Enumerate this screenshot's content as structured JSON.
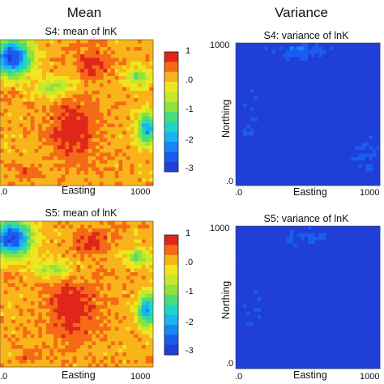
{
  "columns": {
    "left_title": "Mean",
    "right_title": "Variance"
  },
  "colorbar_ticks": [
    "1",
    ".0",
    "-1",
    "-2",
    "-3"
  ],
  "palette": [
    "#1f3fd6",
    "#1a5cf0",
    "#1a86f5",
    "#1ab4f0",
    "#1fd6c6",
    "#4bdc7a",
    "#8fe23c",
    "#c6e82a",
    "#f0e61f",
    "#f8b41a",
    "#f46a16",
    "#e0261a"
  ],
  "chart_data": [
    {
      "type": "heatmap",
      "title": "S4: mean of lnK",
      "xlabel": "Easting",
      "ylabel": "",
      "x_ticks": [
        ".0",
        "1000"
      ],
      "y_ticks": [],
      "colorbar": true,
      "clim": [
        -3,
        1
      ],
      "background": 0.2,
      "blobs": [
        {
          "x": 480,
          "y": 620,
          "rx": 150,
          "ry": 190,
          "value": 1.0
        },
        {
          "x": 600,
          "y": 160,
          "rx": 110,
          "ry": 90,
          "value": 0.9
        },
        {
          "x": 170,
          "y": 920,
          "rx": 60,
          "ry": 60,
          "value": 0.6
        },
        {
          "x": 60,
          "y": 380,
          "rx": 50,
          "ry": 70,
          "value": 0.4
        },
        {
          "x": 80,
          "y": 120,
          "rx": 120,
          "ry": 120,
          "value": -2.8
        },
        {
          "x": 960,
          "y": 610,
          "rx": 60,
          "ry": 110,
          "value": -2.0
        },
        {
          "x": 900,
          "y": 250,
          "rx": 80,
          "ry": 60,
          "value": -1.0
        },
        {
          "x": 350,
          "y": 330,
          "rx": 120,
          "ry": 60,
          "value": -0.8
        }
      ]
    },
    {
      "type": "heatmap",
      "title": "S4: variance of lnK",
      "xlabel": "Easting",
      "ylabel": "Northing",
      "x_ticks": [
        ".0",
        "1000"
      ],
      "y_ticks": [
        "1000",
        ".0"
      ],
      "colorbar": false,
      "clim": [
        -3,
        1
      ],
      "background": -3.0,
      "blobs": [
        {
          "x": 450,
          "y": 60,
          "rx": 200,
          "ry": 60,
          "value": -2.4
        },
        {
          "x": 900,
          "y": 800,
          "rx": 100,
          "ry": 150,
          "value": -2.6
        },
        {
          "x": 100,
          "y": 500,
          "rx": 80,
          "ry": 200,
          "value": -2.7
        }
      ]
    },
    {
      "type": "heatmap",
      "title": "S5: mean of lnK",
      "xlabel": "Easting",
      "ylabel": "",
      "x_ticks": [
        ".0",
        "1000"
      ],
      "y_ticks": [],
      "colorbar": true,
      "clim": [
        -3,
        1
      ],
      "background": 0.2,
      "blobs": [
        {
          "x": 470,
          "y": 600,
          "rx": 160,
          "ry": 200,
          "value": 1.0
        },
        {
          "x": 600,
          "y": 150,
          "rx": 110,
          "ry": 90,
          "value": 0.9
        },
        {
          "x": 170,
          "y": 920,
          "rx": 60,
          "ry": 60,
          "value": 0.6
        },
        {
          "x": 60,
          "y": 380,
          "rx": 50,
          "ry": 70,
          "value": 0.4
        },
        {
          "x": 80,
          "y": 120,
          "rx": 120,
          "ry": 120,
          "value": -2.8
        },
        {
          "x": 960,
          "y": 610,
          "rx": 60,
          "ry": 110,
          "value": -2.0
        },
        {
          "x": 900,
          "y": 250,
          "rx": 80,
          "ry": 60,
          "value": -1.0
        },
        {
          "x": 350,
          "y": 330,
          "rx": 120,
          "ry": 60,
          "value": -0.8
        }
      ]
    },
    {
      "type": "heatmap",
      "title": "S5: variance of lnK",
      "xlabel": "Easting",
      "ylabel": "Northing",
      "x_ticks": [
        ".0",
        "1000"
      ],
      "y_ticks": [
        "1000",
        ".0"
      ],
      "colorbar": false,
      "clim": [
        -3,
        1
      ],
      "background": -3.0,
      "blobs": [
        {
          "x": 500,
          "y": 80,
          "rx": 220,
          "ry": 60,
          "value": -2.6
        },
        {
          "x": 120,
          "y": 600,
          "rx": 80,
          "ry": 150,
          "value": -2.7
        }
      ]
    }
  ]
}
